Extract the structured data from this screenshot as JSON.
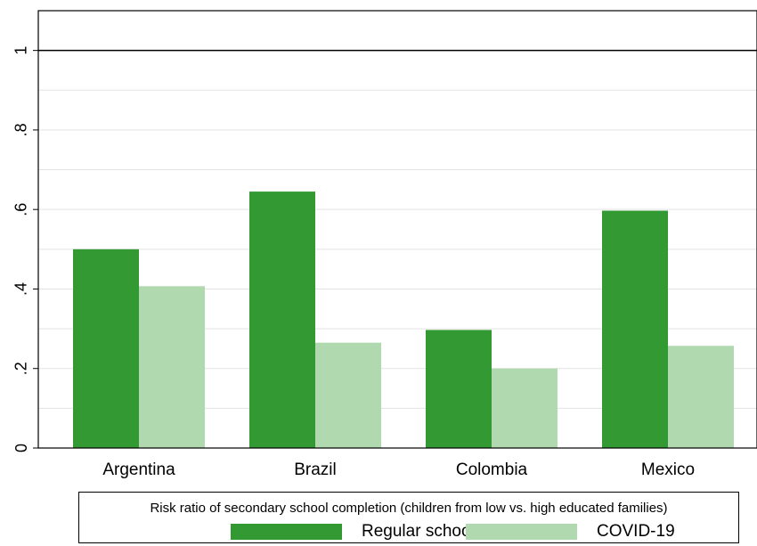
{
  "chart_data": {
    "type": "bar",
    "categories": [
      "Argentina",
      "Brazil",
      "Colombia",
      "Mexico"
    ],
    "series": [
      {
        "name": "Regular school year",
        "values": [
          0.5,
          0.645,
          0.297,
          0.597
        ],
        "color": "#339933"
      },
      {
        "name": "COVID-19",
        "values": [
          0.407,
          0.265,
          0.2,
          0.257
        ],
        "color": "#b0d9b0"
      }
    ],
    "yticks": [
      "0",
      ".2",
      ".4",
      ".6",
      ".8",
      "1"
    ],
    "ytick_values": [
      0,
      0.2,
      0.4,
      0.6,
      0.8,
      1
    ],
    "ylim": [
      0,
      1.1
    ],
    "reference_line": 1,
    "grid": true,
    "legend_title": "Risk ratio of secondary school completion (children from low vs. high educated families)",
    "legend_placement": "bottom"
  }
}
